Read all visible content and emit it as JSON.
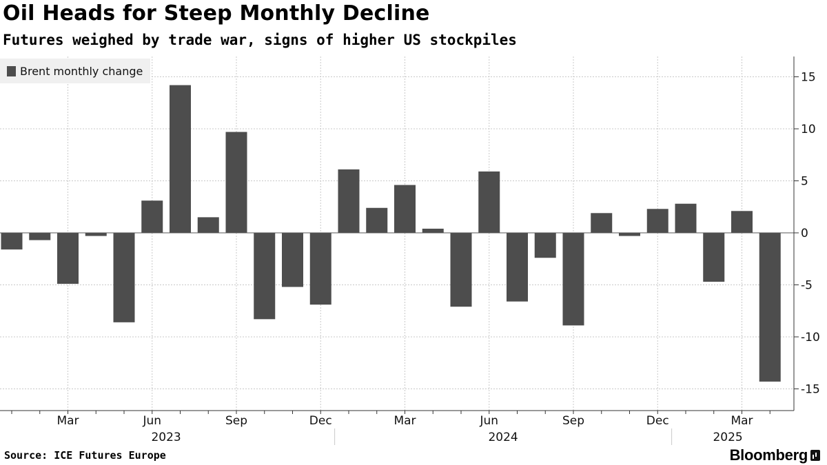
{
  "title": "Oil Heads for Steep Monthly Decline",
  "subtitle": "Futures weighed by trade war, signs of higher US stockpiles",
  "legend_label": "Brent monthly change",
  "source": "Source: ICE Futures Europe",
  "brand": "Bloomberg",
  "bar_color": "#4d4d4d",
  "chart_data": {
    "type": "bar",
    "categories": [
      "2023-01",
      "2023-02",
      "2023-03",
      "2023-04",
      "2023-05",
      "2023-06",
      "2023-07",
      "2023-08",
      "2023-09",
      "2023-10",
      "2023-11",
      "2023-12",
      "2024-01",
      "2024-02",
      "2024-03",
      "2024-04",
      "2024-05",
      "2024-06",
      "2024-07",
      "2024-08",
      "2024-09",
      "2024-10",
      "2024-11",
      "2024-12",
      "2025-01",
      "2025-02",
      "2025-03",
      "2025-04"
    ],
    "series": [
      {
        "name": "Brent monthly change",
        "values": [
          -1.6,
          -0.7,
          -4.9,
          -0.3,
          -8.6,
          3.1,
          14.2,
          1.5,
          9.7,
          -8.3,
          -5.2,
          -6.9,
          6.1,
          2.4,
          4.6,
          0.4,
          -7.1,
          5.9,
          -6.6,
          -2.4,
          -8.9,
          1.9,
          -0.3,
          2.3,
          2.8,
          -4.7,
          2.1,
          -14.3
        ]
      }
    ],
    "ylim": [
      -16.5,
      17
    ],
    "yticks": [
      15,
      10,
      5,
      0,
      -5,
      -10,
      -15
    ],
    "ytick_labels": [
      "15",
      "10",
      "5",
      "0",
      "-5",
      "-10",
      "-15"
    ],
    "month_ticks": [
      {
        "at": 2,
        "label": "Mar"
      },
      {
        "at": 5,
        "label": "Jun"
      },
      {
        "at": 8,
        "label": "Sep"
      },
      {
        "at": 11,
        "label": "Dec"
      },
      {
        "at": 14,
        "label": "Mar"
      },
      {
        "at": 17,
        "label": "Jun"
      },
      {
        "at": 20,
        "label": "Sep"
      },
      {
        "at": 23,
        "label": "Dec"
      },
      {
        "at": 26,
        "label": "Mar"
      }
    ],
    "year_labels": [
      {
        "center": 5.5,
        "label": "2023"
      },
      {
        "center": 17.5,
        "label": "2024"
      },
      {
        "center": 25.5,
        "label": "2025"
      }
    ],
    "year_separators": [
      11.5,
      23.5
    ],
    "grid": true,
    "legend_position": "top-left"
  }
}
